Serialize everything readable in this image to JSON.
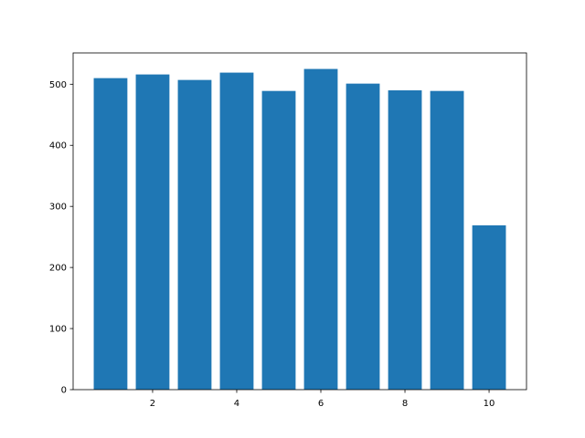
{
  "chart_data": {
    "type": "bar",
    "x": [
      1,
      2,
      3,
      4,
      5,
      6,
      7,
      8,
      9,
      10
    ],
    "values": [
      510,
      516,
      507,
      519,
      489,
      525,
      501,
      490,
      489,
      269
    ],
    "bar_width": 0.8,
    "color": "#1f77b4",
    "xlim": [
      0.11,
      10.89
    ],
    "xticks": [
      2,
      4,
      6,
      8,
      10
    ],
    "ylim": [
      0,
      551.25
    ],
    "yticks": [
      0,
      100,
      200,
      300,
      400,
      500
    ],
    "grid": false
  }
}
